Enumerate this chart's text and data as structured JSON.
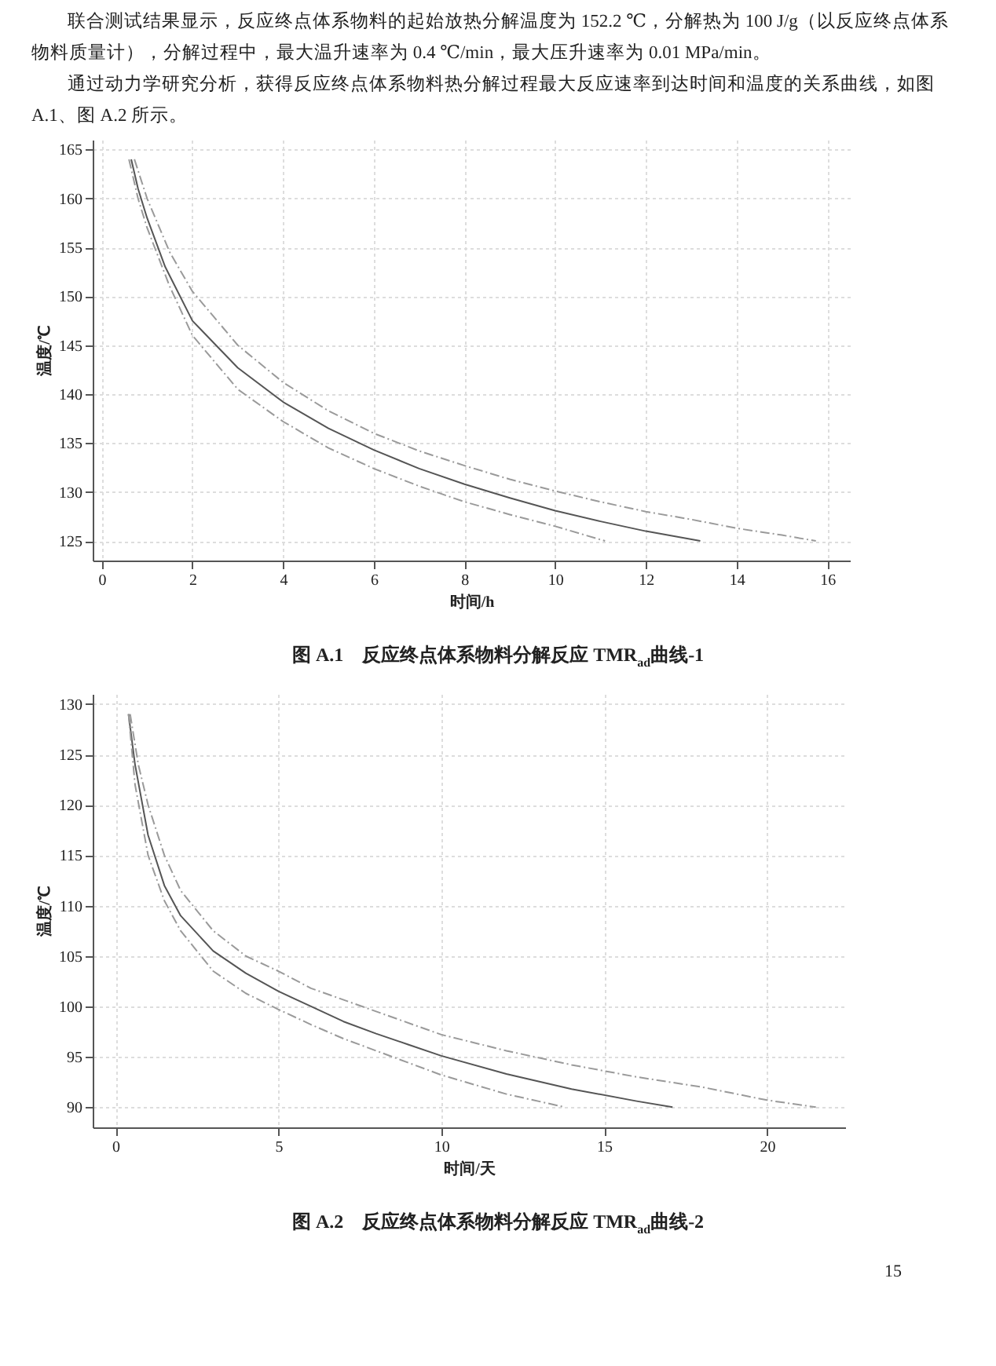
{
  "chart_data": [
    {
      "type": "line",
      "title": "图 A.1　反应终点体系物料分解反应 TMR$_{ad}$曲线-1",
      "xlabel": "时间/h",
      "ylabel": "温度/℃",
      "annotations": [
        "联合测试结果显示，反应终点体系物料的起始放热分解温度为 152.2 ℃，分解热为 100 J/g（以反应终点体系物料质量计），分解过程中，最大温升速率为 0.4 ℃/min，最大压升速率为 0.01 MPa/min。",
        "通过动力学研究分析，获得反应终点体系物料热分解过程最大反应速率到达时间和温度的关系曲线，如图 A.1、图 A.2 所示。"
      ],
      "xlim": [
        -0.2,
        16.5
      ],
      "xticks": [
        0,
        2,
        4,
        6,
        8,
        10,
        12,
        14,
        16
      ],
      "ylim": [
        123,
        166
      ],
      "yticks": [
        125,
        130,
        135,
        140,
        145,
        150,
        155,
        160,
        165
      ],
      "grid": true,
      "series": [
        {
          "color": "#9a9a9a",
          "line_style": "dashed",
          "x": [
            0.72,
            1,
            1.5,
            2,
            3,
            4,
            5,
            6,
            7,
            8,
            9,
            10,
            11,
            12,
            13,
            14,
            15,
            15.75
          ],
          "values": [
            164,
            160,
            154.5,
            150.5,
            145,
            141.2,
            138.3,
            136,
            134.2,
            132.7,
            131.3,
            130.1,
            129,
            128,
            127.2,
            126.3,
            125.6,
            125
          ]
        },
        {
          "color": "#555555",
          "line_style": "solid",
          "x": [
            0.65,
            0.8,
            1,
            1.4,
            2,
            3,
            4,
            5,
            6,
            7,
            8,
            9,
            10,
            11,
            12,
            13.2
          ],
          "values": [
            164,
            161,
            158,
            153,
            147.5,
            142.7,
            139.2,
            136.5,
            134.3,
            132.4,
            130.8,
            129.4,
            128.1,
            127,
            126,
            125
          ]
        },
        {
          "color": "#9a9a9a",
          "line_style": "dashed",
          "x": [
            0.6,
            0.8,
            1,
            1.5,
            2,
            3,
            4,
            5,
            6,
            7,
            8,
            9,
            10,
            11.1
          ],
          "values": [
            164,
            160,
            157,
            151,
            146,
            140.5,
            137.2,
            134.5,
            132.4,
            130.6,
            129,
            127.7,
            126.5,
            125
          ]
        }
      ]
    },
    {
      "type": "line",
      "title": "图 A.2　反应终点体系物料分解反应 TMR$_{ad}$曲线-2",
      "xlabel": "时间/天",
      "ylabel": "温度/℃",
      "annotations": [
        "15"
      ],
      "xlim": [
        -0.7,
        22.4
      ],
      "xticks": [
        0,
        5,
        10,
        15,
        20
      ],
      "ylim": [
        88,
        131
      ],
      "yticks": [
        90,
        95,
        100,
        105,
        110,
        115,
        120,
        125,
        130
      ],
      "grid": true,
      "series": [
        {
          "color": "#9a9a9a",
          "line_style": "dashed",
          "x": [
            0.45,
            0.7,
            1,
            1.5,
            2,
            3,
            4,
            5,
            6,
            8,
            10,
            12,
            14,
            16,
            18,
            20,
            21.5
          ],
          "values": [
            129,
            124,
            120,
            115,
            111.5,
            107.5,
            105,
            103.5,
            101.8,
            99.5,
            97.2,
            95.6,
            94.2,
            93,
            92,
            90.7,
            90
          ]
        },
        {
          "color": "#555555",
          "line_style": "solid",
          "x": [
            0.4,
            0.6,
            1,
            1.5,
            2,
            3,
            4,
            5,
            6,
            7,
            8,
            9,
            10,
            12,
            14,
            16,
            17.1
          ],
          "values": [
            129,
            124,
            117,
            112,
            109,
            105.5,
            103.3,
            101.5,
            100,
            98.5,
            97.3,
            96.2,
            95.1,
            93.3,
            91.8,
            90.6,
            90
          ]
        },
        {
          "color": "#9a9a9a",
          "line_style": "dashed",
          "x": [
            0.4,
            0.6,
            1,
            1.5,
            2,
            3,
            4,
            5,
            6,
            7,
            8,
            10,
            12,
            13.8
          ],
          "values": [
            129,
            122,
            115,
            110.5,
            107.5,
            103.5,
            101.3,
            99.7,
            98.2,
            96.8,
            95.6,
            93.2,
            91.3,
            90
          ]
        }
      ]
    }
  ]
}
